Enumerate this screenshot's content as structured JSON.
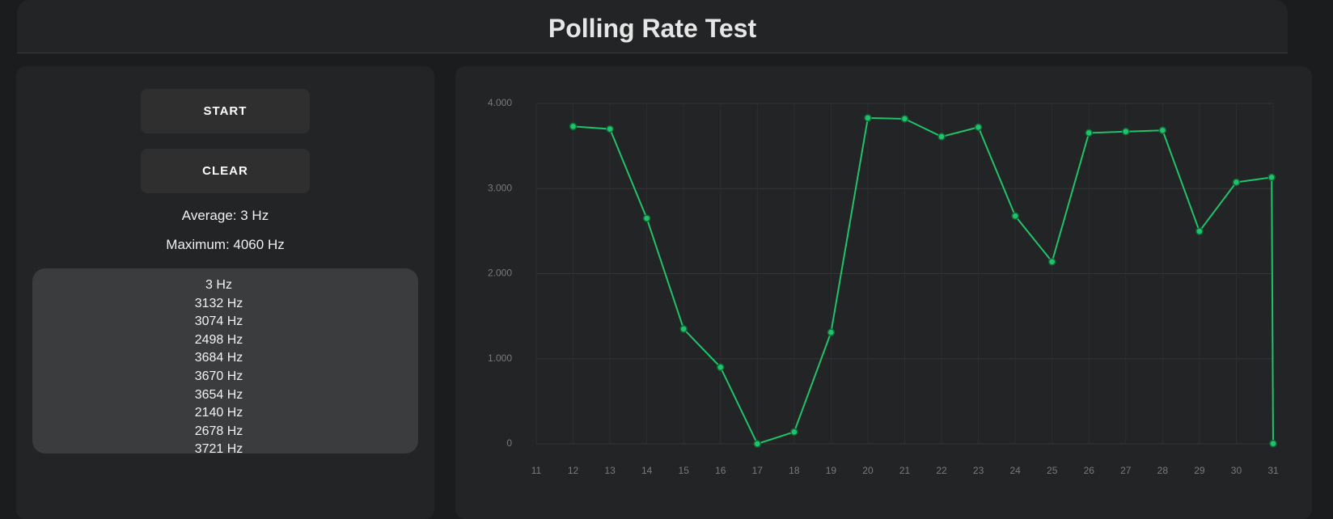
{
  "header": {
    "title": "Polling Rate Test"
  },
  "controls": {
    "buttons": [
      "START",
      "CLEAR"
    ],
    "average": "Average: 3 Hz",
    "maximum": "Maximum: 4060 Hz",
    "readings": [
      "3 Hz",
      "3132 Hz",
      "3074 Hz",
      "2498 Hz",
      "3684 Hz",
      "3670 Hz",
      "3654 Hz",
      "2140 Hz",
      "2678 Hz",
      "3721 Hz"
    ]
  },
  "chart_data": {
    "type": "line",
    "x": [
      12,
      13,
      14,
      15,
      16,
      17,
      18,
      19,
      20,
      21,
      22,
      23,
      24,
      25,
      26,
      27,
      28,
      29,
      30,
      30.96,
      31
    ],
    "series": [
      {
        "color": "#20c26a",
        "values": [
          3730,
          3700,
          2650,
          1350,
          900,
          0,
          140,
          1310,
          3830,
          3820,
          3610,
          3721,
          2678,
          2140,
          3654,
          3670,
          3684,
          2498,
          3074,
          3132,
          3
        ]
      }
    ],
    "xlim": [
      11,
      31
    ],
    "xticks": [
      11,
      12,
      13,
      14,
      15,
      16,
      17,
      18,
      19,
      20,
      21,
      22,
      23,
      24,
      25,
      26,
      27,
      28,
      29,
      30,
      31
    ],
    "ylim": [
      0,
      4000
    ],
    "yticks": [
      0,
      {
        "value": 1000,
        "label": "1.000"
      },
      {
        "value": 2000,
        "label": "2.000"
      },
      {
        "value": 3000,
        "label": "3.000"
      },
      {
        "value": 4000,
        "label": "4.000"
      }
    ],
    "grid": true
  }
}
